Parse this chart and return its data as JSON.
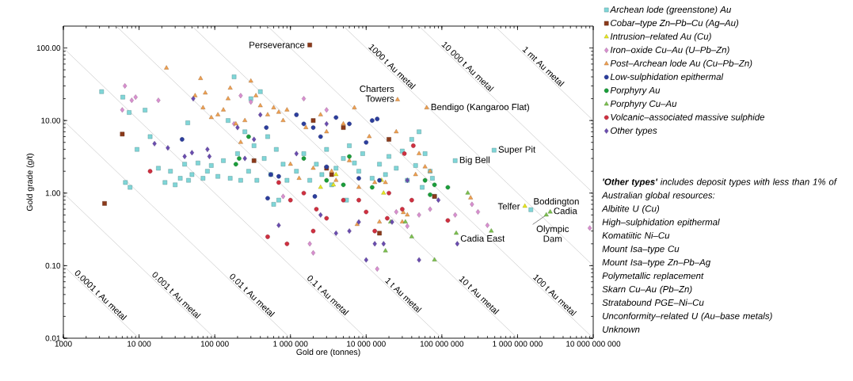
{
  "chart_data": {
    "type": "scatter",
    "xlabel": "Gold ore (tonnes)",
    "ylabel": "Gold grade (g/t)",
    "log": "xy",
    "xlim": [
      1000,
      10000000000
    ],
    "ylim": [
      0.01,
      200
    ],
    "xticks": [
      {
        "value": 1000,
        "label": "1000"
      },
      {
        "value": 10000,
        "label": "10 000"
      },
      {
        "value": 100000,
        "label": "100 000"
      },
      {
        "value": 1000000,
        "label": "1 000 000"
      },
      {
        "value": 10000000,
        "label": "10 000 000"
      },
      {
        "value": 100000000,
        "label": "100 000 000"
      },
      {
        "value": 1000000000,
        "label": "1 000 000 000"
      },
      {
        "value": 10000000000,
        "label": "10 000 000 000"
      }
    ],
    "yticks": [
      {
        "value": 0.01,
        "label": "0.01"
      },
      {
        "value": 0.1,
        "label": "0.10"
      },
      {
        "value": 1,
        "label": "1.00"
      },
      {
        "value": 10,
        "label": "10.00"
      },
      {
        "value": 100,
        "label": "100.00"
      }
    ],
    "legend": "top right",
    "series": [
      {
        "name": "Archean lode (greenstone) Au",
        "color": "#7fd6d8",
        "marker": "square",
        "x": [
          3200,
          6100,
          7400,
          12000,
          44000,
          9400,
          14000,
          6600,
          7600,
          18000,
          22000,
          26000,
          30000,
          35000,
          40000,
          45000,
          50000,
          60000,
          70000,
          80000,
          90000,
          110000,
          130000,
          150000,
          160000,
          180000,
          200000,
          220000,
          250000,
          280000,
          300000,
          330000,
          360000,
          400000,
          450000,
          500000,
          550000,
          600000,
          650000,
          700000,
          800000,
          900000,
          1200000,
          1500000,
          1800000,
          2200000,
          2600000,
          3000000,
          3500000,
          4000000,
          5000000,
          5500000,
          6000000,
          7000000,
          8000000,
          9000000,
          12000000,
          15000000,
          18000000,
          20000000,
          25000000,
          30000000,
          35000000,
          40000000,
          45000000,
          50000000,
          55000000,
          60000000,
          70000000,
          75000000,
          80000000,
          150000000,
          490000000,
          1500000000
        ],
        "values": [
          25,
          21,
          12.9,
          13.9,
          9.3,
          4.0,
          6.0,
          1.4,
          1.2,
          2.2,
          1.4,
          2.0,
          1.3,
          1.6,
          2.5,
          1.5,
          1.8,
          2.6,
          1.6,
          2.0,
          2.4,
          1.7,
          2.8,
          10,
          1.6,
          40,
          3.5,
          1.5,
          7,
          2.0,
          20,
          4.5,
          1.5,
          25,
          3.0,
          6,
          1.8,
          0.7,
          4,
          0.8,
          2.5,
          1.5,
          2.0,
          3.5,
          1.5,
          2.5,
          1.8,
          4,
          1.3,
          2.2,
          3,
          0.8,
          4.5,
          2.6,
          2.0,
          3.5,
          1.6,
          2.5,
          1.8,
          3.2,
          2.2,
          3.8,
          1.5,
          5.5,
          2.4,
          7,
          1.2,
          3.5,
          2.0,
          1.6,
          0.9,
          2.8,
          3.9,
          0.59
        ]
      },
      {
        "name": "Cobar–type Zn–Pb–Cu (Ag–Au)",
        "color": "#8b3a1a",
        "marker": "square",
        "x": [
          3500,
          6000,
          330000,
          1800000,
          2000000,
          3500000,
          5000000,
          20000000,
          15000000,
          80000000,
          3000000
        ],
        "values": [
          0.72,
          6.5,
          2.8,
          110,
          10,
          1.8,
          8,
          5.5,
          0.28,
          0.9,
          2.2
        ]
      },
      {
        "name": "Intrusion–related Au (Cu)",
        "color": "#e8e820",
        "marker": "triangle",
        "x": [
          2500000,
          3700000,
          16000000,
          17000000,
          4000000,
          1250000000
        ],
        "values": [
          1.2,
          1.3,
          1.5,
          1.0,
          1.8,
          0.66
        ]
      },
      {
        "name": "Iron–oxide Cu–Au (U–Pb–Zn)",
        "color": "#d98fd0",
        "marker": "diamond",
        "x": [
          6000,
          6500,
          8000,
          9000,
          18000,
          220000,
          300000,
          180000,
          800000,
          2000000,
          1800000,
          14000000,
          25000000,
          35000000,
          50000000,
          70000000,
          150000000,
          250000000,
          300000000,
          400000000,
          9000000000,
          3000000,
          1500000
        ],
        "values": [
          14,
          30,
          19,
          21,
          19,
          22,
          18,
          9,
          0.9,
          0.15,
          0.2,
          0.09,
          0.55,
          0.35,
          0.5,
          0.6,
          0.5,
          0.7,
          0.55,
          0.36,
          0.33,
          14,
          20
        ]
      },
      {
        "name": "Post–Archean lode Au (Cu–Pb–Zn)",
        "color": "#f0a050",
        "marker": "triangle",
        "x": [
          23000,
          65000,
          55000,
          75000,
          70000,
          90000,
          110000,
          130000,
          150000,
          160000,
          190000,
          220000,
          250000,
          300000,
          350000,
          400000,
          500000,
          600000,
          700000,
          800000,
          900000,
          1000000,
          1300000,
          1600000,
          2000000,
          2500000,
          3000000,
          3500000,
          4000000,
          5000000,
          6000000,
          7000000,
          8000000,
          11000000,
          13000000,
          15000000,
          18000000,
          25000000,
          30000000,
          35000000,
          45000000,
          50000000,
          60000000,
          70000000,
          26000000,
          63000000,
          240000000,
          31000000,
          7600000
        ],
        "values": [
          53,
          38,
          22,
          24,
          15,
          11,
          12,
          14,
          20,
          28,
          9,
          5,
          10,
          35,
          22,
          16,
          12,
          15,
          13,
          10,
          14,
          2.5,
          1.6,
          8,
          2.2,
          12,
          7,
          2.0,
          1.5,
          9,
          2.8,
          15,
          1.2,
          6,
          1.4,
          0.4,
          1.4,
          7,
          0.4,
          0.5,
          1.8,
          3.5,
          2.3,
          2.0,
          19.4,
          15,
          0.86,
          0.54,
          0.37
        ]
      },
      {
        "name": "Low-sulphidation epithermal",
        "color": "#2c3e9e",
        "marker": "circle",
        "x": [
          37000,
          480000,
          500000,
          550000,
          700000,
          1200000,
          1500000,
          2000000,
          2500000,
          4000000,
          6000000,
          8000000,
          10000000,
          12000000,
          14000000,
          15000000,
          2100000,
          3000000
        ],
        "values": [
          5.5,
          8,
          0.85,
          1.8,
          1.7,
          12,
          9,
          8,
          6,
          11,
          9,
          1.6,
          5,
          10,
          10.5,
          1.5,
          0.9,
          2.3
        ]
      },
      {
        "name": "Porphyry Au",
        "color": "#1a9e3a",
        "marker": "circle",
        "x": [
          280000,
          210000,
          190000,
          1500000,
          3000000,
          5000000,
          6000000,
          12000000,
          60000000,
          80000000,
          120000000,
          70000000
        ],
        "values": [
          6,
          3,
          2.5,
          3,
          1.5,
          1.3,
          3.2,
          1.2,
          1.5,
          1.3,
          1.2,
          0.95
        ]
      },
      {
        "name": "Porphyry Cu–Au",
        "color": "#7cc24e",
        "marker": "triangle",
        "x": [
          21000000,
          33000000,
          18000000,
          40000000,
          80000000,
          155000000,
          220000000,
          450000000,
          2400000000,
          2700000000
        ],
        "values": [
          0.4,
          0.4,
          0.16,
          0.25,
          0.12,
          0.28,
          1.0,
          0.3,
          0.5,
          0.55
        ]
      },
      {
        "name": "Volcanic–associated massive sulphide",
        "color": "#d03040",
        "marker": "circle",
        "x": [
          14000,
          500000,
          900000,
          700000,
          1000000,
          1500000,
          2000000,
          2200000,
          3000000,
          5000000,
          8000000,
          10000000,
          13000000,
          19000000,
          30000000,
          40000000,
          120000000,
          32000000,
          42000000,
          20000000
        ],
        "values": [
          2.0,
          0.25,
          0.2,
          1.4,
          0.8,
          1.0,
          0.3,
          0.6,
          0.45,
          0.8,
          0.8,
          0.55,
          0.3,
          0.45,
          0.6,
          0.8,
          0.42,
          3.5,
          4.5,
          1.0
        ]
      },
      {
        "name": "Other types",
        "color": "#6a4cb0",
        "marker": "diamond",
        "x": [
          16000,
          24000,
          40000,
          50000,
          52000,
          80000,
          85000,
          200000,
          250000,
          330000,
          400000,
          700000,
          1200000,
          3000000,
          2500000,
          4000000,
          6000000,
          8000000,
          13000000,
          17000000,
          10000000,
          22000000,
          50000000,
          160000000,
          35000000,
          90000000
        ],
        "values": [
          4.8,
          4.2,
          3.2,
          3.6,
          20,
          4.0,
          3.2,
          8,
          3,
          5.5,
          12,
          0.36,
          3.5,
          9,
          0.5,
          0.28,
          0.3,
          0.4,
          0.2,
          0.2,
          0.12,
          0.4,
          0.12,
          0.2,
          1.5,
          0.8
        ]
      },
      {
        "name": "0.0001 t Au metal",
        "type": "line",
        "color": "#c8c8c8",
        "x": [
          1000,
          10000
        ],
        "values": [
          0.1,
          0.01
        ]
      },
      {
        "name": "0.001 t Au metal",
        "type": "line",
        "color": "#c8c8c8",
        "x": [
          1000,
          100000
        ],
        "values": [
          1,
          0.01
        ]
      },
      {
        "name": "0.01 t Au metal",
        "type": "line",
        "color": "#c8c8c8",
        "x": [
          1000,
          1000000
        ],
        "values": [
          10,
          0.01
        ]
      },
      {
        "name": "0.1 t Au metal",
        "type": "line",
        "color": "#c8c8c8",
        "x": [
          1000,
          10000000
        ],
        "values": [
          100,
          0.01
        ]
      },
      {
        "name": "1 t Au metal",
        "type": "line",
        "color": "#c8c8c8",
        "x": [
          5000,
          100000000
        ],
        "values": [
          200,
          0.01
        ]
      },
      {
        "name": "10 t Au metal",
        "type": "line",
        "color": "#c8c8c8",
        "x": [
          50000,
          1000000000
        ],
        "values": [
          200,
          0.01
        ]
      },
      {
        "name": "100 t Au metal",
        "type": "line",
        "color": "#c8c8c8",
        "x": [
          500000,
          10000000000
        ],
        "values": [
          200,
          0.01
        ]
      },
      {
        "name": "1000 t Au metal",
        "type": "line",
        "color": "#c8c8c8",
        "x": [
          5000000,
          10000000000
        ],
        "values": [
          200,
          0.1
        ]
      },
      {
        "name": "10 000 t Au metal",
        "type": "line",
        "color": "#c8c8c8",
        "x": [
          50000000,
          10000000000
        ],
        "values": [
          200,
          1
        ]
      },
      {
        "name": "1 mt Au metal",
        "type": "line",
        "color": "#c8c8c8",
        "x": [
          500000000,
          10000000000
        ],
        "values": [
          200,
          10
        ]
      }
    ],
    "annotations": [
      {
        "text": "Perseverance",
        "x": 1800000,
        "y": 110
      },
      {
        "text": "Charters Towers",
        "x": 26000000,
        "y": 19.4
      },
      {
        "text": "Bendigo (Kangaroo Flat)",
        "x": 63000000,
        "y": 15
      },
      {
        "text": "Super Pit",
        "x": 490000000,
        "y": 3.9
      },
      {
        "text": "Big Bell",
        "x": 150000000,
        "y": 2.8
      },
      {
        "text": "Telfer",
        "x": 1250000000,
        "y": 0.66
      },
      {
        "text": "Boddington",
        "x": 1500000000,
        "y": 0.59
      },
      {
        "text": "Cadia",
        "x": 2700000000,
        "y": 0.55
      },
      {
        "text": "Cadia East",
        "x": 155000000,
        "y": 0.28
      },
      {
        "text": "Olympic Dam",
        "x": 2400000000,
        "y": 0.5
      },
      "**'Other types'** includes deposit types with less than 1% of Australian global resources:",
      "Albitite U (Cu)",
      "High–sulphidation epithermal",
      "Komatiitic Ni–Cu",
      "Mount Isa–type Cu",
      "Mount Isa–type Zn–Pb–Ag",
      "Polymetallic replacement",
      "Skarn Cu–Au (Pb–Zn)",
      "Stratabound PGE–Ni–Cu",
      "Unconformity–related U (Au–base metals)",
      "Unknown"
    ]
  }
}
